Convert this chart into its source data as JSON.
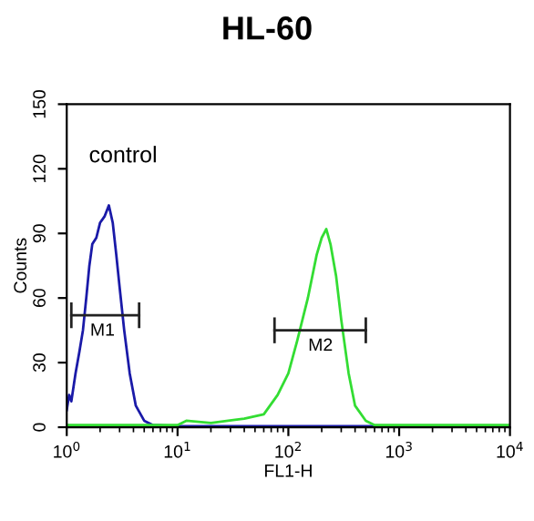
{
  "chart_data": {
    "type": "line",
    "title": "HL-60",
    "xlabel": "FL1-H",
    "ylabel": "Counts",
    "log": "x",
    "xlim": [
      1,
      10000
    ],
    "xticks": [
      {
        "value": 1,
        "label": "10$^{0}$"
      },
      {
        "value": 10,
        "label": "10$^{1}$"
      },
      {
        "value": 100,
        "label": "10$^{2}$"
      },
      {
        "value": 1000,
        "label": "10$^{3}$"
      },
      {
        "value": 10000,
        "label": "10$^{4}$"
      }
    ],
    "ylim": [
      0,
      150
    ],
    "yticks": [
      0,
      30,
      60,
      90,
      120,
      150
    ],
    "grid": false,
    "legend": false,
    "annotations": [
      "control",
      {
        "text": "M1",
        "x": 2.1,
        "y": 52
      },
      {
        "text": "M2",
        "x": 195,
        "y": 45
      }
    ],
    "series": [
      {
        "color": "#1a1aa8",
        "x": [
          1.0,
          1.05,
          1.1,
          1.2,
          1.3,
          1.4,
          1.5,
          1.6,
          1.7,
          1.85,
          2.0,
          2.2,
          2.4,
          2.6,
          2.8,
          3.0,
          3.3,
          3.7,
          4.2,
          5,
          6,
          10,
          100,
          1000,
          10000
        ],
        "values": [
          8,
          15,
          12,
          25,
          35,
          45,
          60,
          75,
          85,
          88,
          95,
          98,
          103,
          95,
          80,
          65,
          45,
          25,
          10,
          3,
          1,
          0.5,
          0.5,
          0.5,
          0.5
        ]
      },
      {
        "color": "#33dd33",
        "x": [
          1.0,
          10,
          12,
          20,
          40,
          60,
          80,
          100,
          120,
          150,
          180,
          200,
          220,
          240,
          270,
          300,
          350,
          400,
          500,
          600,
          10000
        ],
        "values": [
          1,
          1,
          3,
          2,
          4,
          6,
          15,
          25,
          40,
          60,
          80,
          88,
          92,
          85,
          70,
          50,
          25,
          10,
          3,
          1,
          1
        ]
      },
      {
        "color": "#222222",
        "x": [
          1.1,
          4.5
        ],
        "values": [
          52,
          52
        ],
        "errors": [
          6,
          6
        ]
      },
      {
        "color": "#222222",
        "x": [
          75,
          500
        ],
        "values": [
          45,
          45
        ],
        "errors": [
          6,
          6
        ]
      }
    ]
  }
}
